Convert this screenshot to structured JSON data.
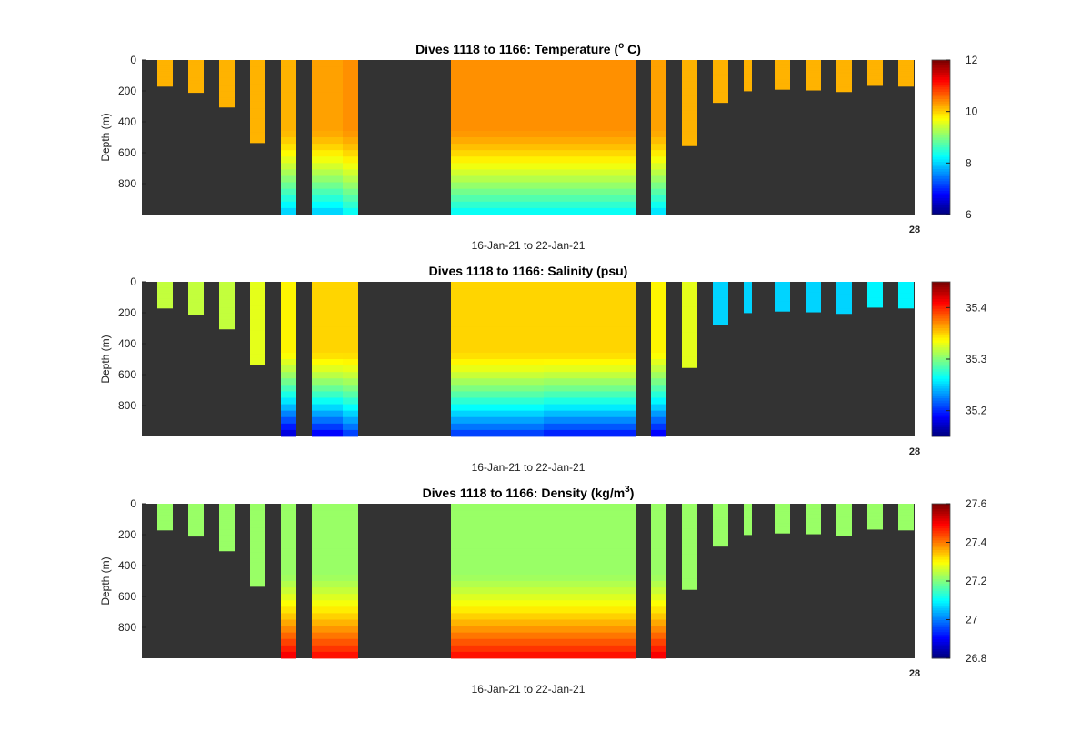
{
  "colors": {
    "background": "#ffffff",
    "axes_background": "#333333",
    "colormap": "jet"
  },
  "chart_data": [
    {
      "type": "heatmap",
      "title": "Dives 1118 to 1166: Temperature (",
      "title_sup": "o",
      "title_suffix": " C)",
      "ylabel": "Depth (m)",
      "xlabel": "16-Jan-21 to 22-Jan-21",
      "corner_label": "28",
      "y_ticks": [
        "0",
        "200",
        "400",
        "600",
        "800"
      ],
      "y_tick_values": [
        0,
        200,
        400,
        600,
        800
      ],
      "ylim": [
        0,
        1000
      ],
      "colorbar_ticks": [
        "6",
        "8",
        "10",
        "12"
      ],
      "colorbar_tick_values": [
        6,
        8,
        10,
        12
      ],
      "clim": [
        6,
        12
      ],
      "profiles": [
        {
          "depth": 170,
          "top_value": 10.2,
          "deep_value": 10.2
        },
        {
          "depth": 210,
          "top_value": 10.2,
          "deep_value": 10.2
        },
        {
          "depth": 305,
          "top_value": 10.2,
          "deep_value": 10.2
        },
        {
          "depth": 535,
          "top_value": 10.2,
          "deep_value": 10.0
        },
        {
          "depth": 1000,
          "top_value": 10.2,
          "deep_value": 7.9
        },
        {
          "depth": 1000,
          "top_value": 10.3,
          "deep_value": 7.9
        },
        {
          "depth": 1000,
          "top_value": 10.3,
          "deep_value": 7.9
        },
        {
          "depth": 1000,
          "top_value": 10.4,
          "deep_value": 8.2
        },
        {
          "depth": 1000,
          "top_value": 10.4,
          "deep_value": 8.2
        },
        {
          "depth": 1000,
          "top_value": 10.4,
          "deep_value": 8.2
        },
        {
          "depth": 1000,
          "top_value": 10.4,
          "deep_value": 8.2
        },
        {
          "depth": 1000,
          "top_value": 10.4,
          "deep_value": 8.2
        },
        {
          "depth": 1000,
          "top_value": 10.4,
          "deep_value": 8.2
        },
        {
          "depth": 1000,
          "top_value": 10.4,
          "deep_value": 8.2
        },
        {
          "depth": 1000,
          "top_value": 10.3,
          "deep_value": 8.0
        },
        {
          "depth": 555,
          "top_value": 10.2,
          "deep_value": 10.0
        },
        {
          "depth": 275,
          "top_value": 10.2,
          "deep_value": 10.2
        },
        {
          "depth": 200,
          "top_value": 10.2,
          "deep_value": 10.2
        },
        {
          "depth": 190,
          "top_value": 10.2,
          "deep_value": 10.2
        },
        {
          "depth": 195,
          "top_value": 10.2,
          "deep_value": 10.2
        },
        {
          "depth": 205,
          "top_value": 10.2,
          "deep_value": 10.2
        },
        {
          "depth": 165,
          "top_value": 10.2,
          "deep_value": 10.2
        },
        {
          "depth": 170,
          "top_value": 10.2,
          "deep_value": 10.2
        }
      ]
    },
    {
      "type": "heatmap",
      "title": "Dives 1118 to 1166: Salinity (psu)",
      "title_sup": "",
      "title_suffix": "",
      "ylabel": "Depth (m)",
      "xlabel": "16-Jan-21 to 22-Jan-21",
      "corner_label": "28",
      "y_ticks": [
        "0",
        "200",
        "400",
        "600",
        "800"
      ],
      "y_tick_values": [
        0,
        200,
        400,
        600,
        800
      ],
      "ylim": [
        0,
        1000
      ],
      "colorbar_ticks": [
        "35.2",
        "35.3",
        "35.4"
      ],
      "colorbar_tick_values": [
        35.2,
        35.3,
        35.4
      ],
      "clim": [
        35.15,
        35.45
      ],
      "profiles": [
        {
          "depth": 170,
          "top_value": 35.32,
          "deep_value": 35.32
        },
        {
          "depth": 210,
          "top_value": 35.32,
          "deep_value": 35.32
        },
        {
          "depth": 305,
          "top_value": 35.32,
          "deep_value": 35.32
        },
        {
          "depth": 535,
          "top_value": 35.33,
          "deep_value": 35.32
        },
        {
          "depth": 1000,
          "top_value": 35.34,
          "deep_value": 35.17
        },
        {
          "depth": 1000,
          "top_value": 35.35,
          "deep_value": 35.18
        },
        {
          "depth": 1000,
          "top_value": 35.35,
          "deep_value": 35.18
        },
        {
          "depth": 1000,
          "top_value": 35.35,
          "deep_value": 35.2
        },
        {
          "depth": 1000,
          "top_value": 35.35,
          "deep_value": 35.2
        },
        {
          "depth": 1000,
          "top_value": 35.35,
          "deep_value": 35.2
        },
        {
          "depth": 1000,
          "top_value": 35.35,
          "deep_value": 35.2
        },
        {
          "depth": 1000,
          "top_value": 35.35,
          "deep_value": 35.19
        },
        {
          "depth": 1000,
          "top_value": 35.35,
          "deep_value": 35.19
        },
        {
          "depth": 1000,
          "top_value": 35.35,
          "deep_value": 35.19
        },
        {
          "depth": 1000,
          "top_value": 35.34,
          "deep_value": 35.18
        },
        {
          "depth": 555,
          "top_value": 35.33,
          "deep_value": 35.32
        },
        {
          "depth": 275,
          "top_value": 35.25,
          "deep_value": 35.25
        },
        {
          "depth": 200,
          "top_value": 35.25,
          "deep_value": 35.25
        },
        {
          "depth": 190,
          "top_value": 35.25,
          "deep_value": 35.25
        },
        {
          "depth": 195,
          "top_value": 35.25,
          "deep_value": 35.25
        },
        {
          "depth": 205,
          "top_value": 35.25,
          "deep_value": 35.25
        },
        {
          "depth": 165,
          "top_value": 35.26,
          "deep_value": 35.26
        },
        {
          "depth": 170,
          "top_value": 35.26,
          "deep_value": 35.26
        }
      ]
    },
    {
      "type": "heatmap",
      "title": "Dives 1118 to 1166: Density (kg/m",
      "title_sup": "3",
      "title_suffix": ")",
      "ylabel": "Depth (m)",
      "xlabel": "16-Jan-21 to 22-Jan-21",
      "corner_label": "28",
      "y_ticks": [
        "0",
        "200",
        "400",
        "600",
        "800"
      ],
      "y_tick_values": [
        0,
        200,
        400,
        600,
        800
      ],
      "ylim": [
        0,
        1000
      ],
      "colorbar_ticks": [
        "26.8",
        "27",
        "27.2",
        "27.4",
        "27.6"
      ],
      "colorbar_tick_values": [
        26.8,
        27.0,
        27.2,
        27.4,
        27.6
      ],
      "clim": [
        26.8,
        27.6
      ],
      "profiles": [
        {
          "depth": 170,
          "top_value": 27.22,
          "deep_value": 27.22
        },
        {
          "depth": 210,
          "top_value": 27.22,
          "deep_value": 27.22
        },
        {
          "depth": 305,
          "top_value": 27.22,
          "deep_value": 27.22
        },
        {
          "depth": 535,
          "top_value": 27.22,
          "deep_value": 27.23
        },
        {
          "depth": 1000,
          "top_value": 27.22,
          "deep_value": 27.52
        },
        {
          "depth": 1000,
          "top_value": 27.22,
          "deep_value": 27.5
        },
        {
          "depth": 1000,
          "top_value": 27.22,
          "deep_value": 27.5
        },
        {
          "depth": 1000,
          "top_value": 27.22,
          "deep_value": 27.5
        },
        {
          "depth": 1000,
          "top_value": 27.22,
          "deep_value": 27.5
        },
        {
          "depth": 1000,
          "top_value": 27.22,
          "deep_value": 27.5
        },
        {
          "depth": 1000,
          "top_value": 27.22,
          "deep_value": 27.5
        },
        {
          "depth": 1000,
          "top_value": 27.22,
          "deep_value": 27.5
        },
        {
          "depth": 1000,
          "top_value": 27.22,
          "deep_value": 27.5
        },
        {
          "depth": 1000,
          "top_value": 27.22,
          "deep_value": 27.5
        },
        {
          "depth": 1000,
          "top_value": 27.22,
          "deep_value": 27.52
        },
        {
          "depth": 555,
          "top_value": 27.22,
          "deep_value": 27.23
        },
        {
          "depth": 275,
          "top_value": 27.22,
          "deep_value": 27.22
        },
        {
          "depth": 200,
          "top_value": 27.22,
          "deep_value": 27.22
        },
        {
          "depth": 190,
          "top_value": 27.22,
          "deep_value": 27.22
        },
        {
          "depth": 195,
          "top_value": 27.22,
          "deep_value": 27.22
        },
        {
          "depth": 205,
          "top_value": 27.22,
          "deep_value": 27.22
        },
        {
          "depth": 165,
          "top_value": 27.22,
          "deep_value": 27.22
        },
        {
          "depth": 170,
          "top_value": 27.22,
          "deep_value": 27.22
        }
      ]
    }
  ]
}
